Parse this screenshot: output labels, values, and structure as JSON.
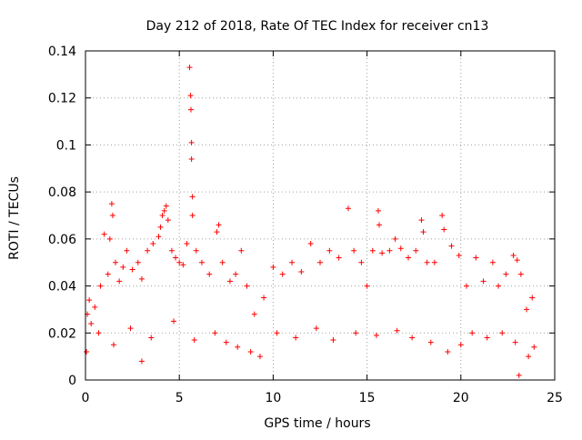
{
  "chart_data": {
    "type": "scatter",
    "title": "Day 212 of 2018, Rate Of TEC Index for receiver cn13",
    "xlabel": "GPS time / hours",
    "ylabel": "ROTI / TECUs",
    "xlim": [
      0,
      25
    ],
    "ylim": [
      0,
      0.14
    ],
    "x_ticks": [
      0,
      5,
      10,
      15,
      20,
      25
    ],
    "x_tick_labels": [
      "0",
      "5",
      "10",
      "15",
      "20",
      "25"
    ],
    "y_ticks": [
      0,
      0.02,
      0.04,
      0.06,
      0.08,
      0.1,
      0.12,
      0.14
    ],
    "y_tick_labels": [
      "0",
      "0.02",
      "0.04",
      "0.06",
      "0.08",
      "0.1",
      "0.12",
      "0.14"
    ],
    "grid": true,
    "marker": "+",
    "marker_color": "#ff0000",
    "series": [
      {
        "name": "ROTI",
        "points": [
          [
            0.1,
            0.028
          ],
          [
            0.2,
            0.034
          ],
          [
            0.3,
            0.024
          ],
          [
            0.5,
            0.031
          ],
          [
            0.8,
            0.04
          ],
          [
            1.0,
            0.062
          ],
          [
            1.2,
            0.045
          ],
          [
            1.3,
            0.06
          ],
          [
            1.4,
            0.075
          ],
          [
            1.45,
            0.07
          ],
          [
            1.6,
            0.05
          ],
          [
            1.8,
            0.042
          ],
          [
            2.0,
            0.048
          ],
          [
            2.2,
            0.055
          ],
          [
            2.5,
            0.047
          ],
          [
            2.8,
            0.05
          ],
          [
            3.0,
            0.043
          ],
          [
            3.3,
            0.055
          ],
          [
            3.6,
            0.058
          ],
          [
            3.9,
            0.061
          ],
          [
            4.0,
            0.065
          ],
          [
            4.1,
            0.07
          ],
          [
            4.2,
            0.072
          ],
          [
            4.3,
            0.074
          ],
          [
            4.4,
            0.068
          ],
          [
            4.6,
            0.055
          ],
          [
            4.8,
            0.052
          ],
          [
            5.0,
            0.05
          ],
          [
            5.2,
            0.049
          ],
          [
            5.4,
            0.058
          ],
          [
            5.55,
            0.133
          ],
          [
            5.6,
            0.121
          ],
          [
            5.62,
            0.115
          ],
          [
            5.65,
            0.101
          ],
          [
            5.65,
            0.094
          ],
          [
            5.7,
            0.078
          ],
          [
            5.7,
            0.07
          ],
          [
            5.9,
            0.055
          ],
          [
            6.2,
            0.05
          ],
          [
            6.6,
            0.045
          ],
          [
            7.0,
            0.063
          ],
          [
            7.1,
            0.066
          ],
          [
            7.3,
            0.05
          ],
          [
            7.7,
            0.042
          ],
          [
            8.0,
            0.045
          ],
          [
            8.3,
            0.055
          ],
          [
            8.6,
            0.04
          ],
          [
            9.0,
            0.028
          ],
          [
            9.5,
            0.035
          ],
          [
            10.0,
            0.048
          ],
          [
            10.5,
            0.045
          ],
          [
            11.0,
            0.05
          ],
          [
            11.5,
            0.046
          ],
          [
            12.0,
            0.058
          ],
          [
            12.5,
            0.05
          ],
          [
            13.0,
            0.055
          ],
          [
            13.5,
            0.052
          ],
          [
            14.0,
            0.073
          ],
          [
            14.3,
            0.055
          ],
          [
            14.7,
            0.05
          ],
          [
            15.0,
            0.04
          ],
          [
            15.3,
            0.055
          ],
          [
            15.6,
            0.072
          ],
          [
            15.65,
            0.066
          ],
          [
            15.8,
            0.054
          ],
          [
            16.2,
            0.055
          ],
          [
            16.5,
            0.06
          ],
          [
            16.8,
            0.056
          ],
          [
            17.2,
            0.052
          ],
          [
            17.6,
            0.055
          ],
          [
            17.9,
            0.068
          ],
          [
            18.0,
            0.063
          ],
          [
            18.2,
            0.05
          ],
          [
            18.6,
            0.05
          ],
          [
            19.0,
            0.07
          ],
          [
            19.1,
            0.064
          ],
          [
            19.5,
            0.057
          ],
          [
            19.9,
            0.053
          ],
          [
            20.3,
            0.04
          ],
          [
            20.8,
            0.052
          ],
          [
            21.2,
            0.042
          ],
          [
            21.7,
            0.05
          ],
          [
            22.0,
            0.04
          ],
          [
            22.4,
            0.045
          ],
          [
            22.8,
            0.053
          ],
          [
            23.0,
            0.051
          ],
          [
            23.2,
            0.045
          ],
          [
            23.5,
            0.03
          ],
          [
            23.8,
            0.035
          ],
          [
            0.05,
            0.012
          ],
          [
            0.7,
            0.02
          ],
          [
            1.5,
            0.015
          ],
          [
            2.4,
            0.022
          ],
          [
            3.5,
            0.018
          ],
          [
            4.7,
            0.025
          ],
          [
            5.8,
            0.017
          ],
          [
            6.9,
            0.02
          ],
          [
            7.5,
            0.016
          ],
          [
            8.1,
            0.014
          ],
          [
            8.8,
            0.012
          ],
          [
            9.3,
            0.01
          ],
          [
            10.2,
            0.02
          ],
          [
            11.2,
            0.018
          ],
          [
            12.3,
            0.022
          ],
          [
            13.2,
            0.017
          ],
          [
            14.4,
            0.02
          ],
          [
            15.5,
            0.019
          ],
          [
            16.6,
            0.021
          ],
          [
            17.4,
            0.018
          ],
          [
            18.4,
            0.016
          ],
          [
            19.3,
            0.012
          ],
          [
            20.0,
            0.015
          ],
          [
            20.6,
            0.02
          ],
          [
            21.4,
            0.018
          ],
          [
            22.2,
            0.02
          ],
          [
            22.9,
            0.016
          ],
          [
            23.1,
            0.002
          ],
          [
            23.6,
            0.01
          ],
          [
            23.9,
            0.014
          ],
          [
            3.0,
            0.008
          ]
        ]
      }
    ]
  }
}
